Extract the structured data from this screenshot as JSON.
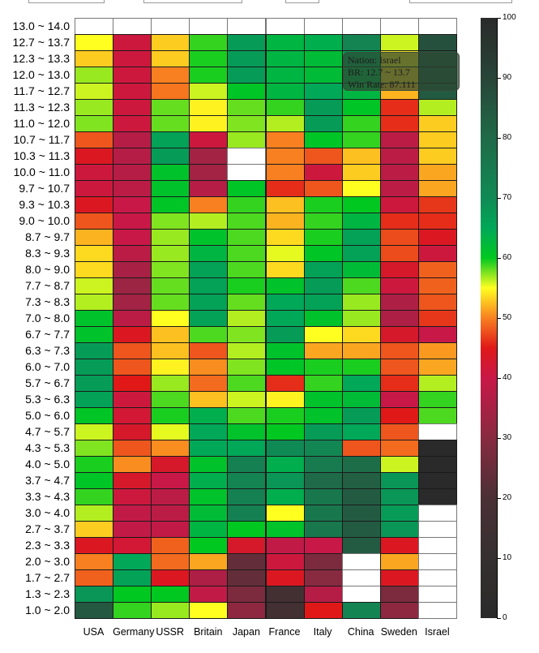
{
  "chart_data": {
    "type": "heatmap",
    "title": "",
    "xlabel": "",
    "ylabel": "",
    "x_categories": [
      "USA",
      "Germany",
      "USSR",
      "Britain",
      "Japan",
      "France",
      "Italy",
      "China",
      "Sweden",
      "Israel"
    ],
    "y_categories": [
      "13.0 ~ 14.0",
      "12.7 ~ 13.7",
      "12.3 ~ 13.3",
      "12.0 ~ 13.0",
      "11.7 ~ 12.7",
      "11.3 ~ 12.3",
      "11.0 ~ 12.0",
      "10.7 ~ 11.7",
      "10.3 ~ 11.3",
      "10.0 ~ 11.0",
      "9.7 ~ 10.7",
      "9.3 ~ 10.3",
      "9.0 ~ 10.0",
      "8.7 ~ 9.7",
      "8.3 ~ 9.3",
      "8.0 ~ 9.0",
      "7.7 ~ 8.7",
      "7.3 ~ 8.3",
      "7.0 ~ 8.0",
      "6.7 ~ 7.7",
      "6.3 ~ 7.3",
      "6.0 ~ 7.0",
      "5.7 ~ 6.7",
      "5.3 ~ 6.3",
      "5.0 ~ 6.0",
      "4.7 ~ 5.7",
      "4.3 ~ 5.3",
      "4.0 ~ 5.0",
      "3.7 ~ 4.7",
      "3.3 ~ 4.3",
      "3.0 ~ 4.0",
      "2.7 ~ 3.7",
      "2.3 ~ 3.3",
      "2.0 ~ 3.0",
      "1.7 ~ 2.7",
      "1.3 ~ 2.3",
      "1.0 ~ 2.0"
    ],
    "values": [
      [
        null,
        null,
        null,
        null,
        null,
        null,
        null,
        null,
        null,
        null
      ],
      [
        55,
        41,
        53,
        59,
        67,
        63,
        64,
        72,
        56,
        87.111
      ],
      [
        53,
        41,
        53,
        59.5,
        67,
        63,
        62,
        66,
        54,
        85
      ],
      [
        57,
        41,
        50,
        59.5,
        67,
        63,
        62,
        64,
        53,
        85
      ],
      [
        56,
        41,
        49.5,
        56,
        60.5,
        63,
        65,
        63,
        52,
        84
      ],
      [
        57,
        41,
        58,
        54.5,
        58,
        59,
        67,
        60.5,
        46,
        56.5
      ],
      [
        57.5,
        41,
        58,
        54.5,
        57.5,
        56.5,
        67,
        59,
        46,
        53
      ],
      [
        48,
        37,
        66,
        41,
        57,
        50,
        60.5,
        59,
        38,
        53
      ],
      [
        44,
        37,
        67,
        34,
        null,
        50,
        48,
        52.5,
        38,
        53
      ],
      [
        41,
        37,
        61,
        34,
        null,
        50,
        41,
        53,
        38,
        51.5
      ],
      [
        41,
        38,
        61,
        37,
        60.5,
        46,
        48,
        55,
        38,
        51.5
      ],
      [
        44,
        40,
        60.5,
        50,
        59,
        52.5,
        59.5,
        60,
        41,
        46.5
      ],
      [
        48,
        40,
        57.5,
        56.5,
        58.5,
        52,
        59,
        63,
        46,
        46
      ],
      [
        52,
        40,
        57,
        61,
        58.5,
        53.5,
        59.5,
        66,
        47.5,
        44
      ],
      [
        53.5,
        38,
        57,
        63,
        58.5,
        55.5,
        60.5,
        66,
        47.5,
        41
      ],
      [
        53.5,
        35,
        57.5,
        66,
        58.5,
        53.5,
        66,
        62,
        43,
        48.5
      ],
      [
        56,
        33,
        58,
        66,
        59.5,
        61,
        67,
        58.5,
        41,
        48.5
      ],
      [
        56.5,
        34,
        58,
        66,
        58,
        65,
        66,
        57,
        36,
        48
      ],
      [
        61,
        38,
        55,
        66,
        56.5,
        65,
        61,
        57,
        36,
        46.5
      ],
      [
        61,
        44,
        52.5,
        58.5,
        57.5,
        67,
        55,
        53.5,
        43,
        40
      ],
      [
        67,
        48,
        52.5,
        48,
        56.5,
        61,
        51.5,
        51.5,
        48,
        51
      ],
      [
        67,
        48,
        54.5,
        50.5,
        57.5,
        60.5,
        59.5,
        59.5,
        48,
        51.5
      ],
      [
        67,
        45,
        57,
        49,
        58.5,
        46,
        59,
        65,
        46,
        56.5
      ],
      [
        66,
        41,
        58.5,
        52.5,
        56,
        54.5,
        61,
        62,
        40,
        59
      ],
      [
        60.5,
        42,
        59.5,
        64,
        58.5,
        59.5,
        61,
        67,
        45,
        58.5
      ],
      [
        56,
        43,
        55.5,
        65,
        61,
        60,
        67,
        65,
        48,
        null
      ],
      [
        57.5,
        48,
        50.5,
        65,
        65,
        70,
        71,
        48,
        49,
        100
      ],
      [
        59.5,
        50.5,
        43,
        61,
        73,
        64,
        75,
        79,
        56,
        100
      ],
      [
        60.5,
        43,
        40,
        64,
        72,
        68,
        80,
        83,
        68,
        100
      ],
      [
        59,
        41,
        38,
        61,
        73,
        64,
        76,
        84,
        68,
        100
      ],
      [
        56.5,
        39,
        38,
        62,
        73,
        55,
        76,
        84,
        67,
        null
      ],
      [
        53,
        39,
        39,
        63,
        60,
        61,
        76,
        84,
        68,
        null
      ],
      [
        44,
        42,
        48.5,
        60,
        43,
        39,
        40,
        84,
        44,
        null
      ],
      [
        50,
        65,
        49,
        51.5,
        24,
        41,
        28,
        null,
        51.5,
        null
      ],
      [
        48.5,
        66,
        44,
        36,
        24,
        44,
        30,
        null,
        44,
        null
      ],
      [
        68,
        60,
        60,
        39,
        28,
        16,
        37,
        null,
        28,
        null
      ],
      [
        85,
        59,
        57,
        55,
        31,
        16,
        45,
        72,
        31,
        null
      ]
    ],
    "colorbar": {
      "range": [
        0,
        100
      ],
      "ticks": [
        "0",
        "10",
        "20",
        "30",
        "40",
        "50",
        "60",
        "70",
        "80",
        "90",
        "100"
      ]
    },
    "colormap": [
      [
        0,
        "#2a2a2a"
      ],
      [
        10,
        "#363030"
      ],
      [
        20,
        "#4a3035"
      ],
      [
        30,
        "#882a40"
      ],
      [
        40,
        "#c81848"
      ],
      [
        45,
        "#e01818"
      ],
      [
        50,
        "#f88020"
      ],
      [
        55,
        "#ffff20"
      ],
      [
        60,
        "#00c820"
      ],
      [
        65,
        "#00a858"
      ],
      [
        70,
        "#108a55"
      ],
      [
        80,
        "#1f6a48"
      ],
      [
        90,
        "#284538"
      ],
      [
        100,
        "#2a2a2a"
      ]
    ],
    "tooltip": {
      "nation": "Nation: Israel",
      "br": "BR: 12.7 ~ 13.7",
      "win_rate": "Win Rate: 87.111"
    }
  }
}
